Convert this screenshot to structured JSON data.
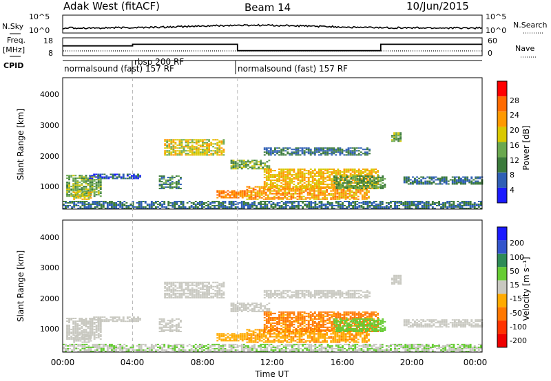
{
  "header": {
    "station": "Adak West (fitACF)",
    "beam": "Beam 14",
    "date": "10/Jun/2015"
  },
  "noise_panel": {
    "left_label": "N.Sky",
    "right_label": "N.Search",
    "left_ticks": [
      "10^5",
      "10^0"
    ],
    "right_ticks": [
      "10^5",
      "10^0"
    ]
  },
  "freq_panel": {
    "left_label_line1": "Freq.",
    "left_label_line2": "[MHz]",
    "right_label": "Nave",
    "left_ticks": [
      "18",
      "8"
    ],
    "right_ticks": [
      "60",
      "0"
    ]
  },
  "cpid_panel": {
    "label": "CPID",
    "segments": [
      {
        "name": "normalsound (fast) 157 RF",
        "start_hour": 0,
        "end_hour": 4
      },
      {
        "name": "rbsp 200 RF",
        "start_hour": 4,
        "end_hour": 10
      },
      {
        "name": "normalsound (fast) 157 RF",
        "start_hour": 10,
        "end_hour": 24
      }
    ]
  },
  "axes": {
    "xlabel": "Time UT",
    "x_ticks": [
      "00:00",
      "04:00",
      "08:00",
      "12:00",
      "16:00",
      "20:00",
      "00:00"
    ],
    "ylabel": "Slant Range [km]",
    "y_ticks": [
      "1000",
      "2000",
      "3000",
      "4000"
    ]
  },
  "power_colorbar": {
    "label": "Power [dB]",
    "ticks": [
      "4",
      "8",
      "12",
      "16",
      "20",
      "24",
      "28"
    ],
    "colors": [
      "#1a1aff",
      "#2f5fb5",
      "#3b7a3b",
      "#6aa84f",
      "#d9c800",
      "#ff9900",
      "#ff6a00",
      "#ff0000"
    ]
  },
  "velocity_colorbar": {
    "label": "Velocity [m s⁻¹]",
    "ticks": [
      "200",
      "100",
      "50",
      "15",
      "-15",
      "-50",
      "-100",
      "-200"
    ],
    "colors": [
      "#1a1aff",
      "#3355cc",
      "#2e8b57",
      "#66cc33",
      "#c8c8c0",
      "#ffaa00",
      "#ff7700",
      "#ff3300",
      "#ee0000"
    ]
  },
  "chart_data": {
    "type": "heatmap",
    "x_unit": "hours UT",
    "xlim": [
      0,
      24
    ],
    "y_unit": "km",
    "ylim": [
      200,
      4500
    ],
    "cpid_change_hours": [
      4,
      10
    ],
    "frequency_panel": {
      "ylim": [
        8,
        18
      ],
      "freq_MHz": [
        {
          "start": 0,
          "end": 4,
          "value": 13.5
        },
        {
          "start": 4,
          "end": 10,
          "value": 14.4
        },
        {
          "start": 10,
          "end": 18.2,
          "value": 10.8
        },
        {
          "start": 18.2,
          "end": 24,
          "value": 14.4
        }
      ]
    },
    "scatter_regions": [
      {
        "t_start": 0.2,
        "t_end": 2.2,
        "r_start": 600,
        "r_end": 1300,
        "power_db": 14,
        "velocity": 0
      },
      {
        "t_start": 0.6,
        "t_end": 1.6,
        "r_start": 500,
        "r_end": 800,
        "power_db": 18,
        "velocity": 0
      },
      {
        "t_start": 1.5,
        "t_end": 4.5,
        "r_start": 1180,
        "r_end": 1320,
        "power_db": 6,
        "velocity": 0
      },
      {
        "t_start": 5.5,
        "t_end": 6.8,
        "r_start": 850,
        "r_end": 1300,
        "power_db": 10,
        "velocity": 0
      },
      {
        "t_start": 5.8,
        "t_end": 9.2,
        "r_start": 1950,
        "r_end": 2450,
        "power_db": 18,
        "velocity": 0
      },
      {
        "t_start": 8.8,
        "t_end": 10.8,
        "r_start": 550,
        "r_end": 800,
        "power_db": 24,
        "velocity": -30
      },
      {
        "t_start": 9.6,
        "t_end": 11.8,
        "r_start": 1500,
        "r_end": 1800,
        "power_db": 14,
        "velocity": 0
      },
      {
        "t_start": 10.5,
        "t_end": 17.5,
        "r_start": 500,
        "r_end": 950,
        "power_db": 22,
        "velocity": -40
      },
      {
        "t_start": 11.5,
        "t_end": 18,
        "r_start": 850,
        "r_end": 1500,
        "power_db": 20,
        "velocity": -60
      },
      {
        "t_start": 15.5,
        "t_end": 18.5,
        "r_start": 850,
        "r_end": 1300,
        "power_db": 12,
        "velocity": 30
      },
      {
        "t_start": 11.5,
        "t_end": 17.5,
        "r_start": 1950,
        "r_end": 2200,
        "power_db": 8,
        "velocity": 0
      },
      {
        "t_start": 19.5,
        "t_end": 24,
        "r_start": 1000,
        "r_end": 1250,
        "power_db": 8,
        "velocity": 0
      },
      {
        "t_start": 18.8,
        "t_end": 19.4,
        "r_start": 2400,
        "r_end": 2700,
        "power_db": 14,
        "velocity": 0
      },
      {
        "t_start": 0,
        "t_end": 24,
        "r_start": 200,
        "r_end": 450,
        "power_db": 8,
        "velocity": 10
      }
    ]
  }
}
